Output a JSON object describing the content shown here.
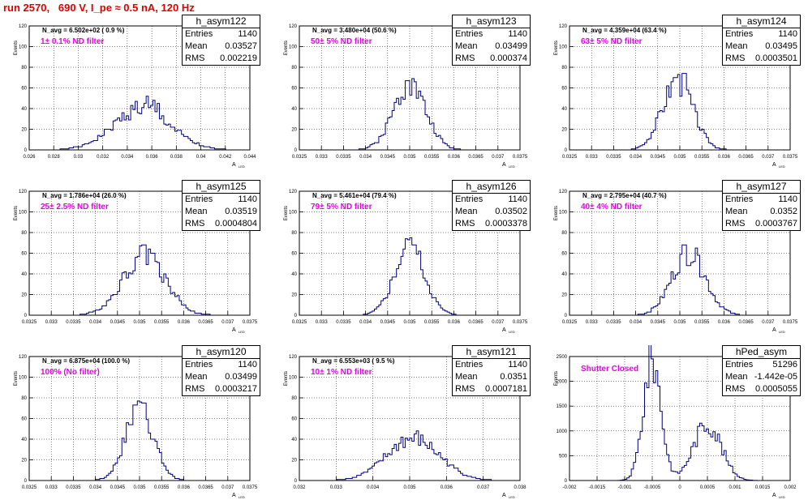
{
  "title": "run 2570,   690 V, I_pe ≈ 0.5 nA, 120 Hz",
  "stat_labels": {
    "entries": "Entries",
    "mean": "Mean",
    "rms": "RMS"
  },
  "colors": {
    "title": "#e00000",
    "note": "#e800e8",
    "hist": "#000080"
  },
  "y_axis_label": "Events",
  "x_axis_label": "A",
  "x_axis_sub": "LED",
  "chart_data": [
    {
      "type": "histogram",
      "stat_title": "h_asym122",
      "entries": "1140",
      "mean": "0.03527",
      "rms": "0.002219",
      "navg": "N_avg = 6.502e+02 ( 0.9 %)",
      "note": "1± 0.1% ND filter",
      "xlim": [
        0.026,
        0.044
      ],
      "ylim": [
        0,
        120
      ],
      "xticks": [
        "0.026",
        "0.028",
        "0.03",
        "0.032",
        "0.034",
        "0.036",
        "0.038",
        "0.04",
        "0.042",
        "0.044"
      ],
      "xtick_vals": [
        0.026,
        0.028,
        0.03,
        0.032,
        0.034,
        0.036,
        0.038,
        0.04,
        0.042,
        0.044
      ],
      "yticks": [
        "0",
        "20",
        "40",
        "60",
        "80",
        "100",
        "120"
      ],
      "peak": {
        "mu": 0.0352,
        "sigma": 0.0023,
        "amp": 40
      },
      "spikes": [
        [
          0.0356,
          52
        ],
        [
          0.0348,
          47
        ],
        [
          0.0361,
          48
        ],
        [
          0.0366,
          45
        ]
      ]
    },
    {
      "type": "histogram",
      "stat_title": "h_asym123",
      "entries": "1140",
      "mean": "0.03499",
      "rms": "0.000374",
      "navg": "N_avg = 3.480e+04 (50.6 %)",
      "note": "50± 5% ND filter",
      "xlim": [
        0.0325,
        0.0375
      ],
      "ylim": [
        0,
        120
      ],
      "xticks": [
        "0.0325",
        "0.033",
        "0.0335",
        "0.034",
        "0.0345",
        "0.035",
        "0.0355",
        "0.036",
        "0.0365",
        "0.037",
        "0.0375"
      ],
      "xtick_vals": [
        0.0325,
        0.033,
        0.0335,
        0.034,
        0.0345,
        0.035,
        0.0355,
        0.036,
        0.0365,
        0.037,
        0.0375
      ],
      "yticks": [
        "0",
        "20",
        "40",
        "60",
        "80",
        "100",
        "120"
      ],
      "peak": {
        "mu": 0.035,
        "sigma": 0.00037,
        "amp": 63
      },
      "spikes": [
        [
          0.03495,
          67
        ],
        [
          0.0351,
          66
        ]
      ]
    },
    {
      "type": "histogram",
      "stat_title": "h_asym124",
      "entries": "1140",
      "mean": "0.03495",
      "rms": "0.0003501",
      "navg": "N_avg = 4.359e+04 (63.4 %)",
      "note": "63± 5% ND filter",
      "xlim": [
        0.0325,
        0.0375
      ],
      "ylim": [
        0,
        120
      ],
      "xticks": [
        "0.0325",
        "0.033",
        "0.0335",
        "0.034",
        "0.0345",
        "0.035",
        "0.0355",
        "0.036",
        "0.0365",
        "0.037",
        "0.0375"
      ],
      "xtick_vals": [
        0.0325,
        0.033,
        0.0335,
        0.034,
        0.0345,
        0.035,
        0.0355,
        0.036,
        0.0365,
        0.037,
        0.0375
      ],
      "yticks": [
        "0",
        "20",
        "40",
        "60",
        "80",
        "100",
        "120"
      ],
      "peak": {
        "mu": 0.03495,
        "sigma": 0.00035,
        "amp": 66
      },
      "spikes": [
        [
          0.0351,
          74
        ],
        [
          0.0349,
          70
        ]
      ]
    },
    {
      "type": "histogram",
      "stat_title": "h_asym125",
      "entries": "1140",
      "mean": "0.03519",
      "rms": "0.0004804",
      "navg": "N_avg = 1.786e+04 (26.0 %)",
      "note": "25± 2.5% ND filter",
      "xlim": [
        0.0325,
        0.0375
      ],
      "ylim": [
        0,
        120
      ],
      "xticks": [
        "0.0325",
        "0.033",
        "0.0335",
        "0.034",
        "0.0345",
        "0.035",
        "0.0355",
        "0.036",
        "0.0365",
        "0.037",
        "0.0375"
      ],
      "xtick_vals": [
        0.0325,
        0.033,
        0.0335,
        0.034,
        0.0345,
        0.035,
        0.0355,
        0.036,
        0.0365,
        0.037,
        0.0375
      ],
      "yticks": [
        "0",
        "20",
        "40",
        "60",
        "80",
        "100",
        "120"
      ],
      "peak": {
        "mu": 0.0351,
        "sigma": 0.00048,
        "amp": 58
      },
      "spikes": [
        [
          0.0351,
          68
        ],
        [
          0.0353,
          60
        ]
      ]
    },
    {
      "type": "histogram",
      "stat_title": "h_asym126",
      "entries": "1140",
      "mean": "0.03502",
      "rms": "0.0003378",
      "navg": "N_avg = 5.461e+04 (79.4 %)",
      "note": "79± 5% ND filter",
      "xlim": [
        0.0325,
        0.0375
      ],
      "ylim": [
        0,
        120
      ],
      "xticks": [
        "0.0325",
        "0.033",
        "0.0335",
        "0.034",
        "0.0345",
        "0.035",
        "0.0355",
        "0.036",
        "0.0365",
        "0.037",
        "0.0375"
      ],
      "xtick_vals": [
        0.0325,
        0.033,
        0.0335,
        0.034,
        0.0345,
        0.035,
        0.0355,
        0.036,
        0.0365,
        0.037,
        0.0375
      ],
      "yticks": [
        "0",
        "20",
        "40",
        "60",
        "80",
        "100",
        "120"
      ],
      "peak": {
        "mu": 0.035,
        "sigma": 0.00034,
        "amp": 66
      },
      "spikes": [
        [
          0.035,
          73
        ],
        [
          0.0351,
          68
        ]
      ]
    },
    {
      "type": "histogram",
      "stat_title": "h_asym127",
      "entries": "1140",
      "mean": "0.0352",
      "rms": "0.0003767",
      "navg": "N_avg = 2.795e+04 (40.7 %)",
      "note": "40± 4% ND filter",
      "xlim": [
        0.0325,
        0.0375
      ],
      "ylim": [
        0,
        120
      ],
      "xticks": [
        "0.0325",
        "0.033",
        "0.0335",
        "0.034",
        "0.0345",
        "0.035",
        "0.0355",
        "0.036",
        "0.0365",
        "0.037",
        "0.0375"
      ],
      "xtick_vals": [
        0.0325,
        0.033,
        0.0335,
        0.034,
        0.0345,
        0.035,
        0.0355,
        0.036,
        0.0365,
        0.037,
        0.0375
      ],
      "yticks": [
        "0",
        "20",
        "40",
        "60",
        "80",
        "100",
        "120"
      ],
      "peak": {
        "mu": 0.0352,
        "sigma": 0.00038,
        "amp": 60
      },
      "spikes": [
        [
          0.0351,
          68
        ],
        [
          0.0354,
          58
        ]
      ]
    },
    {
      "type": "histogram",
      "stat_title": "h_asym120",
      "entries": "1140",
      "mean": "0.03499",
      "rms": "0.0003217",
      "navg": "N_avg = 6.875e+04 (100.0 %)",
      "note": "100% (No filter)",
      "xlim": [
        0.0325,
        0.0375
      ],
      "ylim": [
        0,
        120
      ],
      "xticks": [
        "0.0325",
        "0.033",
        "0.0335",
        "0.034",
        "0.0345",
        "0.035",
        "0.0355",
        "0.036",
        "0.0365",
        "0.037",
        "0.0375"
      ],
      "xtick_vals": [
        0.0325,
        0.033,
        0.0335,
        0.034,
        0.0345,
        0.035,
        0.0355,
        0.036,
        0.0365,
        0.037,
        0.0375
      ],
      "yticks": [
        "0",
        "20",
        "40",
        "60",
        "80",
        "100",
        "120"
      ],
      "peak": {
        "mu": 0.035,
        "sigma": 0.00032,
        "amp": 70
      },
      "spikes": [
        [
          0.035,
          76
        ],
        [
          0.0351,
          75
        ],
        [
          0.0349,
          73
        ]
      ]
    },
    {
      "type": "histogram",
      "stat_title": "h_asym121",
      "entries": "1140",
      "mean": "0.0351",
      "rms": "0.0007181",
      "navg": "N_avg = 6.553e+03 ( 9.5 %)",
      "note": "10± 1% ND filter",
      "xlim": [
        0.032,
        0.038
      ],
      "ylim": [
        0,
        120
      ],
      "xticks": [
        "0.032",
        "0.033",
        "0.034",
        "0.035",
        "0.036",
        "0.037",
        "0.038"
      ],
      "xtick_vals": [
        0.032,
        0.033,
        0.034,
        0.035,
        0.036,
        0.037,
        0.038
      ],
      "yticks": [
        "0",
        "20",
        "40",
        "60",
        "80",
        "100",
        "120"
      ],
      "peak": {
        "mu": 0.0351,
        "sigma": 0.00072,
        "amp": 40
      },
      "spikes": [
        [
          0.0352,
          48
        ],
        [
          0.0348,
          42
        ]
      ]
    },
    {
      "type": "histogram",
      "stat_title": "hPed_asym",
      "entries": "51296",
      "mean": "-1.442e-05",
      "rms": "0.0005055",
      "navg": "",
      "note": "Shutter Closed",
      "xlim": [
        -0.002,
        0.002
      ],
      "ylim": [
        0,
        2500
      ],
      "xticks": [
        "-0.002",
        "-0.0015",
        "-0.001",
        "-0.0005",
        "0",
        "0.0005",
        "0.001",
        "0.0015",
        "0.002"
      ],
      "xtick_vals": [
        -0.002,
        -0.0015,
        -0.001,
        -0.0005,
        0,
        0.0005,
        0.001,
        0.0015,
        0.002
      ],
      "yticks": [
        "0",
        "500",
        "1000",
        "1500",
        "2000",
        "2500"
      ],
      "bimodal": [
        {
          "mu": -0.0005,
          "sigma": 0.00016,
          "amp": 2450
        },
        {
          "mu": 0.0005,
          "sigma": 0.00025,
          "amp": 1150
        }
      ],
      "spikes": []
    }
  ]
}
